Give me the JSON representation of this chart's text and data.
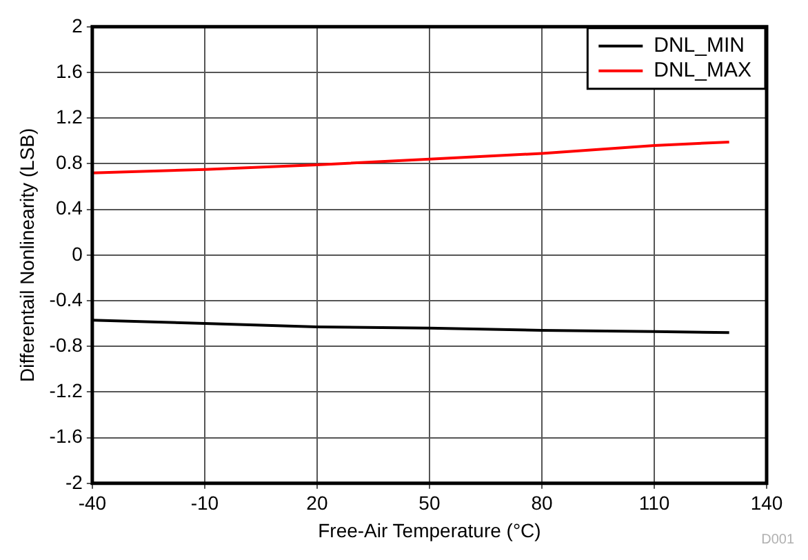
{
  "chart_data": {
    "type": "line",
    "xlabel": "Free-Air Temperature (°C)",
    "ylabel": "Differentail Nonlinearity (LSB)",
    "x": [
      -40,
      -10,
      20,
      50,
      80,
      110,
      130
    ],
    "series": [
      {
        "name": "DNL_MIN",
        "color": "#000000",
        "values": [
          -0.57,
          -0.6,
          -0.63,
          -0.64,
          -0.66,
          -0.67,
          -0.68
        ]
      },
      {
        "name": "DNL_MAX",
        "color": "#ff0000",
        "values": [
          0.72,
          0.75,
          0.79,
          0.84,
          0.89,
          0.96,
          0.99
        ]
      }
    ],
    "xlim": [
      -40,
      140
    ],
    "xticks": [
      -40,
      -10,
      20,
      50,
      80,
      110,
      140
    ],
    "ylim": [
      -2,
      2
    ],
    "yticks": [
      -2,
      -1.6,
      -1.2,
      -0.8,
      -0.4,
      0,
      0.4,
      0.8,
      1.2,
      1.6,
      2
    ],
    "grid": true,
    "legend": "top right",
    "marker": "none",
    "line_style": "solid",
    "annotations": [
      "D001"
    ]
  }
}
